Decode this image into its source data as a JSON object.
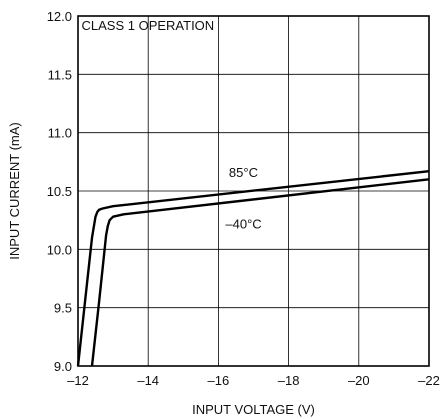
{
  "chart_data": {
    "type": "line",
    "title": "",
    "xlabel": "INPUT VOLTAGE (V)",
    "ylabel": "INPUT CURRENT (mA)",
    "xlim": [
      -12,
      -22
    ],
    "ylim": [
      9.0,
      12.0
    ],
    "xticks": [
      -12,
      -14,
      -16,
      -18,
      -20,
      -22
    ],
    "xtick_labels": [
      "–12",
      "–14",
      "–16",
      "–18",
      "–20",
      "–22"
    ],
    "yticks": [
      9.0,
      9.5,
      10.0,
      10.5,
      11.0,
      11.5,
      12.0
    ],
    "ytick_labels": [
      "9.0",
      "9.5",
      "10.0",
      "10.5",
      "11.0",
      "11.5",
      "12.0"
    ],
    "grid": true,
    "annotations": [
      {
        "text": "CLASS 1 OPERATION",
        "x": -12.1,
        "y": 11.88
      },
      {
        "text": "85°C",
        "x": -16.3,
        "y": 10.62
      },
      {
        "text": "–40°C",
        "x": -16.2,
        "y": 10.18
      }
    ],
    "series": [
      {
        "name": "85°C",
        "color": "#000000",
        "x": [
          -12.0,
          -12.2,
          -12.4,
          -12.5,
          -12.55,
          -12.6,
          -12.7,
          -13.0,
          -22.0
        ],
        "y": [
          9.0,
          9.55,
          10.1,
          10.28,
          10.32,
          10.34,
          10.35,
          10.37,
          10.67
        ]
      },
      {
        "name": "–40°C",
        "color": "#000000",
        "x": [
          -12.4,
          -12.6,
          -12.8,
          -12.85,
          -12.9,
          -13.0,
          -13.3,
          -22.0
        ],
        "y": [
          9.0,
          9.55,
          10.12,
          10.2,
          10.25,
          10.28,
          10.3,
          10.6
        ]
      }
    ]
  }
}
